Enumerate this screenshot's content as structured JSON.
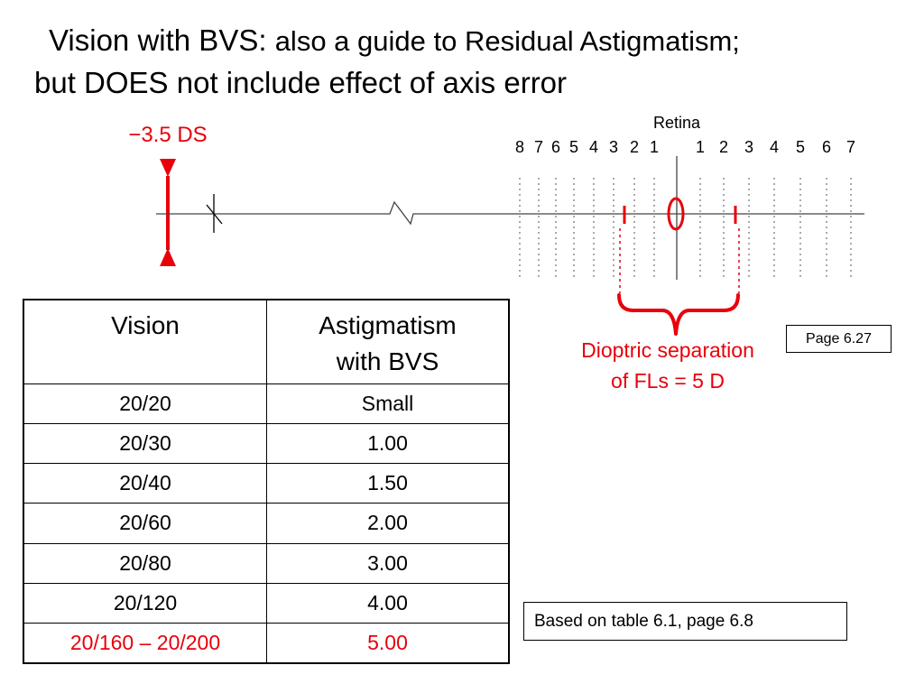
{
  "title": {
    "line1_main": "Vision with BVS:",
    "line1_sub": "also a guide to Residual Astigmatism;",
    "line2": "but DOES not include effect of axis error"
  },
  "diagram": {
    "lens_label": "−3.5 DS",
    "retina_label": "Retina",
    "left_ticks": [
      "8",
      "7",
      "6",
      "5",
      "4",
      "3",
      "2",
      "1"
    ],
    "right_ticks": [
      "1",
      "2",
      "3",
      "4",
      "5",
      "6",
      "7"
    ],
    "separation_line1": "Dioptric separation",
    "separation_line2": "of FLs = 5 D",
    "colors": {
      "accent": "#e8000b",
      "line": "#000000",
      "gray": "#444444"
    }
  },
  "table": {
    "headers": [
      "Vision",
      "Astigmatism",
      "with BVS"
    ],
    "rows": [
      {
        "vision": "20/20",
        "astig": "Small"
      },
      {
        "vision": "20/30",
        "astig": "1.00"
      },
      {
        "vision": "20/40",
        "astig": "1.50"
      },
      {
        "vision": "20/60",
        "astig": "2.00"
      },
      {
        "vision": "20/80",
        "astig": "3.00"
      },
      {
        "vision": "20/120",
        "astig": "4.00"
      },
      {
        "vision": "20/160 – 20/200",
        "astig": "5.00"
      }
    ]
  },
  "page_ref": "Page 6.27",
  "footnote": "Based on table 6.1, page 6.8"
}
